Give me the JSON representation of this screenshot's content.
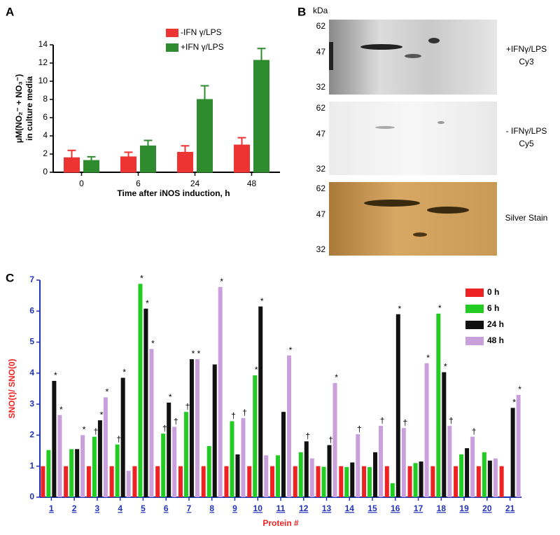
{
  "chart_data": [
    {
      "type": "bar",
      "panel": "A",
      "categories": [
        "0",
        "6",
        "24",
        "48"
      ],
      "series": [
        {
          "name": "-IFN γ/LPS",
          "color": "#ee3333",
          "values": [
            1.6,
            1.7,
            2.2,
            3.0
          ],
          "errors": [
            0.8,
            0.5,
            0.7,
            0.8
          ]
        },
        {
          "name": "+IFN γ/LPS",
          "color": "#2e8b2e",
          "values": [
            1.3,
            2.9,
            8.0,
            12.3
          ],
          "errors": [
            0.4,
            0.6,
            1.5,
            1.3
          ]
        }
      ],
      "ylim": [
        0,
        14
      ],
      "yticks": [
        0,
        2,
        4,
        6,
        8,
        10,
        12,
        14
      ],
      "y_label": [
        "μM(NO₂⁻ + NO₃⁻)",
        "in culture media"
      ],
      "x_label": "Time after iNOS induction, h",
      "axis_color": "#000000"
    },
    {
      "type": "bar",
      "panel": "C",
      "categories": [
        "1",
        "2",
        "3",
        "4",
        "5",
        "6",
        "7",
        "8",
        "9",
        "10",
        "11",
        "12",
        "13",
        "14",
        "15",
        "16",
        "17",
        "18",
        "19",
        "20",
        "21"
      ],
      "series": [
        {
          "name": "0 h",
          "color": "#ee2222",
          "values": [
            1,
            1,
            1,
            1,
            1,
            1,
            1,
            1,
            1,
            1,
            1,
            1,
            1,
            1,
            1,
            1,
            1,
            1,
            1,
            1,
            1
          ],
          "markers": [
            null,
            null,
            null,
            null,
            null,
            null,
            null,
            null,
            null,
            null,
            null,
            null,
            null,
            null,
            null,
            null,
            null,
            null,
            null,
            null,
            null
          ]
        },
        {
          "name": "6 h",
          "color": "#22cc22",
          "values": [
            1.52,
            1.55,
            1.95,
            1.7,
            6.88,
            2.05,
            2.75,
            1.65,
            2.45,
            3.93,
            1.35,
            1.45,
            0.98,
            0.97,
            0.97,
            0.45,
            1.1,
            5.92,
            1.38,
            1.45,
            null
          ],
          "markers": [
            null,
            null,
            "†",
            "†",
            "*",
            "†",
            "†",
            null,
            "†",
            "*",
            null,
            null,
            null,
            null,
            null,
            null,
            null,
            "*",
            null,
            null,
            null
          ]
        },
        {
          "name": "24 h",
          "color": "#111111",
          "values": [
            3.75,
            1.55,
            2.48,
            3.85,
            6.08,
            3.05,
            4.45,
            4.28,
            1.38,
            6.15,
            2.75,
            1.8,
            1.68,
            1.12,
            1.45,
            5.9,
            1.15,
            4.03,
            1.58,
            1.18,
            2.88
          ],
          "markers": [
            "*",
            null,
            "*",
            "*",
            "*",
            "*",
            "*",
            null,
            null,
            "*",
            null,
            "†",
            "†",
            null,
            null,
            "*",
            null,
            "*",
            null,
            null,
            "*"
          ]
        },
        {
          "name": "48 h",
          "color": "#c9a0dc",
          "values": [
            2.65,
            2.0,
            3.22,
            0.85,
            4.78,
            2.27,
            4.45,
            6.78,
            2.55,
            1.35,
            4.57,
            1.25,
            3.68,
            2.03,
            2.3,
            2.23,
            4.32,
            2.3,
            1.95,
            1.25,
            3.3
          ],
          "markers": [
            "*",
            "*",
            "*",
            null,
            "*",
            "†",
            "*",
            "*",
            "†",
            null,
            "*",
            null,
            "*",
            "†",
            "†",
            "†",
            "*",
            "†",
            "†",
            null,
            "*"
          ]
        }
      ],
      "ylim": [
        0,
        7
      ],
      "yticks": [
        0,
        1,
        2,
        3,
        4,
        5,
        6,
        7
      ],
      "y_label": [
        "SNO(t)/ SNO(0)"
      ],
      "x_label": "Protein #",
      "axis_color": "#2233bb"
    }
  ],
  "gel_panel": {
    "panel": "B",
    "unit": "kDa",
    "lanes": [
      {
        "mw": [
          "62",
          "47",
          "32"
        ],
        "label": [
          "+IFNγ/LPS",
          "Cy3"
        ]
      },
      {
        "mw": [
          "62",
          "47",
          "32"
        ],
        "label": [
          "- IFNγ/LPS",
          "Cy5"
        ]
      },
      {
        "mw": [
          "62",
          "47",
          "32"
        ],
        "label": [
          "Silver Stain"
        ]
      }
    ]
  }
}
